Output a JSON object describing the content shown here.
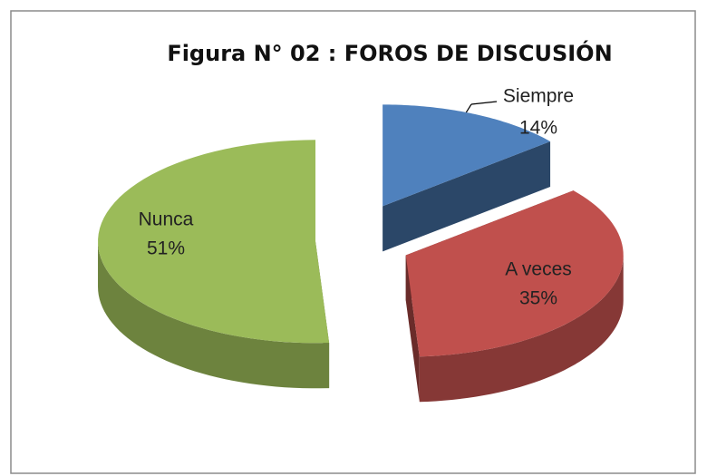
{
  "chart_data": {
    "type": "pie",
    "title": "Figura N° 02 : FOROS DE DISCUSIÓN",
    "categories": [
      "Siempre",
      "A veces",
      "Nunca"
    ],
    "values": [
      14,
      35,
      51
    ],
    "value_labels": [
      "14%",
      "35%",
      "51%"
    ],
    "colors": [
      "#4f81bd",
      "#c0504d",
      "#9bbb59"
    ]
  }
}
